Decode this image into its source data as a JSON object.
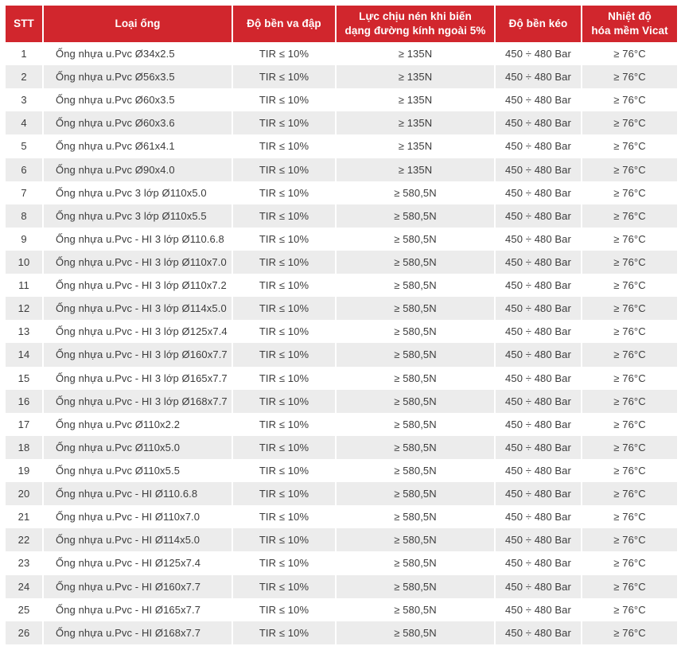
{
  "colors": {
    "header_bg": "#D1262D",
    "header_text": "#FFFFFF",
    "row_stripe_bg": "#ECECEC",
    "row_plain_bg": "#FFFFFF",
    "body_text": "#3C3C3C"
  },
  "table": {
    "columns": [
      {
        "key": "stt",
        "label": "STT"
      },
      {
        "key": "loai-ong",
        "label": "Loại ống"
      },
      {
        "key": "do-ben-va-dap",
        "label": "Độ bền va đập"
      },
      {
        "key": "luc-chiu-nen",
        "label": "Lực chịu nén khi biến\ndạng đường kính ngoài 5%"
      },
      {
        "key": "do-ben-keo",
        "label": "Độ bền kéo"
      },
      {
        "key": "nhiet-do-hoa-mem",
        "label": "Nhiệt độ\nhóa mềm Vicat"
      }
    ],
    "rows": [
      [
        "1",
        "Ống nhựa u.Pvc Ø34x2.5",
        "TIR ≤ 10%",
        "≥ 135N",
        "450 ÷ 480 Bar",
        "≥ 76°C"
      ],
      [
        "2",
        "Ống nhựa u.Pvc Ø56x3.5",
        "TIR ≤ 10%",
        "≥ 135N",
        "450 ÷ 480 Bar",
        "≥ 76°C"
      ],
      [
        "3",
        "Ống nhựa u.Pvc Ø60x3.5",
        "TIR ≤ 10%",
        "≥ 135N",
        "450 ÷ 480 Bar",
        "≥ 76°C"
      ],
      [
        "4",
        "Ống nhựa u.Pvc Ø60x3.6",
        "TIR ≤ 10%",
        "≥ 135N",
        "450 ÷ 480 Bar",
        "≥ 76°C"
      ],
      [
        "5",
        "Ống nhựa u.Pvc Ø61x4.1",
        "TIR ≤ 10%",
        "≥ 135N",
        "450 ÷ 480 Bar",
        "≥ 76°C"
      ],
      [
        "6",
        "Ống nhựa u.Pvc Ø90x4.0",
        "TIR ≤ 10%",
        "≥ 135N",
        "450 ÷ 480 Bar",
        "≥ 76°C"
      ],
      [
        "7",
        "Ống nhựa u.Pvc 3 lớp Ø110x5.0",
        "TIR ≤ 10%",
        "≥ 580,5N",
        "450 ÷ 480 Bar",
        "≥ 76°C"
      ],
      [
        "8",
        "Ống nhựa u.Pvc 3 lớp Ø110x5.5",
        "TIR ≤ 10%",
        "≥ 580,5N",
        "450 ÷ 480 Bar",
        "≥ 76°C"
      ],
      [
        "9",
        "Ống nhựa u.Pvc - HI 3 lớp Ø110.6.8",
        "TIR ≤ 10%",
        "≥ 580,5N",
        "450 ÷ 480 Bar",
        "≥ 76°C"
      ],
      [
        "10",
        "Ống nhựa u.Pvc - HI 3 lớp Ø110x7.0",
        "TIR ≤ 10%",
        "≥ 580,5N",
        "450 ÷ 480 Bar",
        "≥ 76°C"
      ],
      [
        "11",
        "Ống nhựa u.Pvc - HI 3 lớp Ø110x7.2",
        "TIR ≤ 10%",
        "≥ 580,5N",
        "450 ÷ 480 Bar",
        "≥ 76°C"
      ],
      [
        "12",
        "Ống nhựa u.Pvc - HI 3 lớp Ø114x5.0",
        "TIR ≤ 10%",
        "≥ 580,5N",
        "450 ÷ 480 Bar",
        "≥ 76°C"
      ],
      [
        "13",
        "Ống nhựa u.Pvc - HI 3 lớp Ø125x7.4",
        "TIR ≤ 10%",
        "≥ 580,5N",
        "450 ÷ 480 Bar",
        "≥ 76°C"
      ],
      [
        "14",
        "Ống nhựa u.Pvc - HI 3 lớp Ø160x7.7",
        "TIR ≤ 10%",
        "≥ 580,5N",
        "450 ÷ 480 Bar",
        "≥ 76°C"
      ],
      [
        "15",
        "Ống nhựa u.Pvc - HI 3 lớp Ø165x7.7",
        "TIR ≤ 10%",
        "≥ 580,5N",
        "450 ÷ 480 Bar",
        "≥ 76°C"
      ],
      [
        "16",
        "Ống nhựa u.Pvc - HI 3 lớp Ø168x7.7",
        "TIR ≤ 10%",
        "≥ 580,5N",
        "450 ÷ 480 Bar",
        "≥ 76°C"
      ],
      [
        "17",
        "Ống nhựa u.Pvc Ø110x2.2",
        "TIR ≤ 10%",
        "≥ 580,5N",
        "450 ÷ 480 Bar",
        "≥ 76°C"
      ],
      [
        "18",
        "Ống nhựa u.Pvc Ø110x5.0",
        "TIR ≤ 10%",
        "≥ 580,5N",
        "450 ÷ 480 Bar",
        "≥ 76°C"
      ],
      [
        "19",
        "Ống nhựa u.Pvc Ø110x5.5",
        "TIR ≤ 10%",
        "≥ 580,5N",
        "450 ÷ 480 Bar",
        "≥ 76°C"
      ],
      [
        "20",
        "Ống nhựa u.Pvc - HI Ø110.6.8",
        "TIR ≤ 10%",
        "≥ 580,5N",
        "450 ÷ 480 Bar",
        "≥ 76°C"
      ],
      [
        "21",
        "Ống nhựa u.Pvc - HI Ø110x7.0",
        "TIR ≤ 10%",
        "≥ 580,5N",
        "450 ÷ 480 Bar",
        "≥ 76°C"
      ],
      [
        "22",
        "Ống nhựa u.Pvc - HI Ø114x5.0",
        "TIR ≤ 10%",
        "≥ 580,5N",
        "450 ÷ 480 Bar",
        "≥ 76°C"
      ],
      [
        "23",
        "Ống nhựa u.Pvc - HI Ø125x7.4",
        "TIR ≤ 10%",
        "≥ 580,5N",
        "450 ÷ 480 Bar",
        "≥ 76°C"
      ],
      [
        "24",
        "Ống nhựa u.Pvc - HI Ø160x7.7",
        "TIR ≤ 10%",
        "≥ 580,5N",
        "450 ÷ 480 Bar",
        "≥ 76°C"
      ],
      [
        "25",
        "Ống nhựa u.Pvc - HI Ø165x7.7",
        "TIR ≤ 10%",
        "≥ 580,5N",
        "450 ÷ 480 Bar",
        "≥ 76°C"
      ],
      [
        "26",
        "Ống nhựa u.Pvc - HI Ø168x7.7",
        "TIR ≤ 10%",
        "≥ 580,5N",
        "450 ÷ 480 Bar",
        "≥ 76°C"
      ]
    ]
  }
}
